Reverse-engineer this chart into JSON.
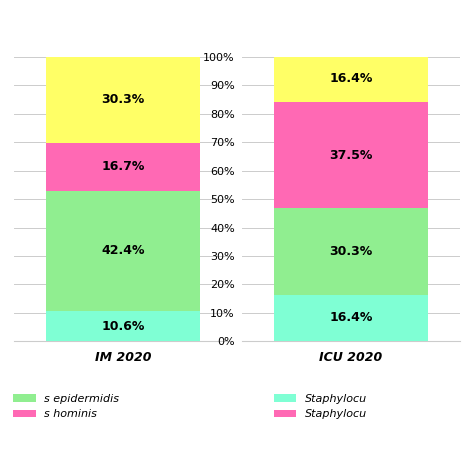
{
  "bars": {
    "IM 2020": [
      10.6,
      42.4,
      16.7,
      30.3
    ],
    "ICU 2020": [
      16.4,
      30.3,
      37.5,
      16.4
    ]
  },
  "colors": [
    "#7FFFD4",
    "#90EE90",
    "#FF69B4",
    "#FFFF66"
  ],
  "segment_labels": {
    "IM 2020": [
      "10.6%",
      "42.4%",
      "16.7%",
      "30.3%"
    ],
    "ICU 2020": [
      "16.4%",
      "30.3%",
      "37.5%",
      "16.4%"
    ]
  },
  "yticks": [
    0,
    10,
    20,
    30,
    40,
    50,
    60,
    70,
    80,
    90,
    100
  ],
  "bar_width": 0.85,
  "figsize": [
    4.74,
    4.74
  ],
  "dpi": 100,
  "bg_color": "#FFFFFF",
  "text_color": "#000000",
  "grid_color": "#CCCCCC",
  "font_size_yticks": 8,
  "font_size_pct": 9,
  "font_size_xlabel": 9,
  "font_size_legend": 8,
  "left_legend_labels": [
    "s epidermidis",
    "s hominis"
  ],
  "left_legend_colors": [
    "#90EE90",
    "#FF69B4"
  ],
  "right_legend_labels": [
    "Staphylocu",
    "Staphylocu"
  ],
  "right_legend_colors": [
    "#7FFFD4",
    "#FF69B4"
  ]
}
